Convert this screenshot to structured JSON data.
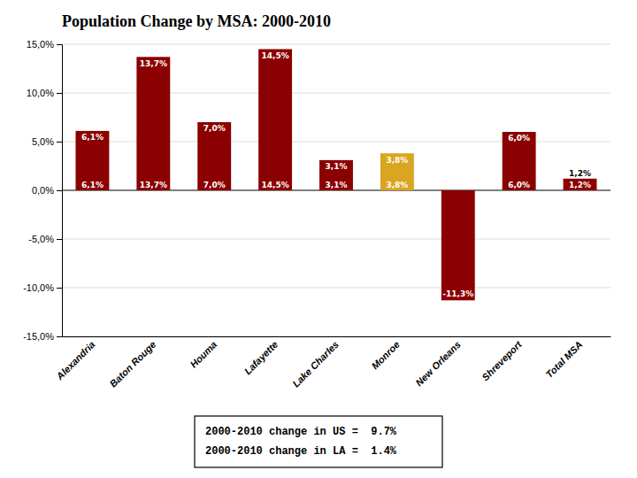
{
  "chart_data": {
    "type": "bar",
    "title": "Population Change by MSA: 2000-2010",
    "categories": [
      "Alexandria",
      "Baton Rouge",
      "Houma",
      "Lafayette",
      "Lake Charles",
      "Monroe",
      "New Orleans",
      "Shreveport",
      "Total MSA"
    ],
    "values": [
      6.1,
      13.7,
      7.0,
      14.5,
      3.1,
      3.8,
      -11.3,
      6.0,
      1.2
    ],
    "value_labels": [
      "6,1%",
      "13,7%",
      "7,0%",
      "14,5%",
      "3,1%",
      "3,8%",
      "-11,3%",
      "6,0%",
      "1,2%"
    ],
    "colors": [
      "#8B0000",
      "#8B0000",
      "#8B0000",
      "#8B0000",
      "#8B0000",
      "#DAA520",
      "#8B0000",
      "#8B0000",
      "#8B0000"
    ],
    "ylim": [
      -15,
      15
    ],
    "yticks": [
      {
        "value": -15,
        "label": "-15,0%"
      },
      {
        "value": -10,
        "label": "-10,0%"
      },
      {
        "value": -5,
        "label": "-5,0%"
      },
      {
        "value": 0,
        "label": "0,0%"
      },
      {
        "value": 5,
        "label": "5,0%"
      },
      {
        "value": 10,
        "label": "10,0%"
      },
      {
        "value": 15,
        "label": "15,0%"
      }
    ],
    "grid": true,
    "annotations": [
      "2000-2010 change in US =  9.7%",
      "2000-2010 change in LA =  1.4%"
    ]
  }
}
